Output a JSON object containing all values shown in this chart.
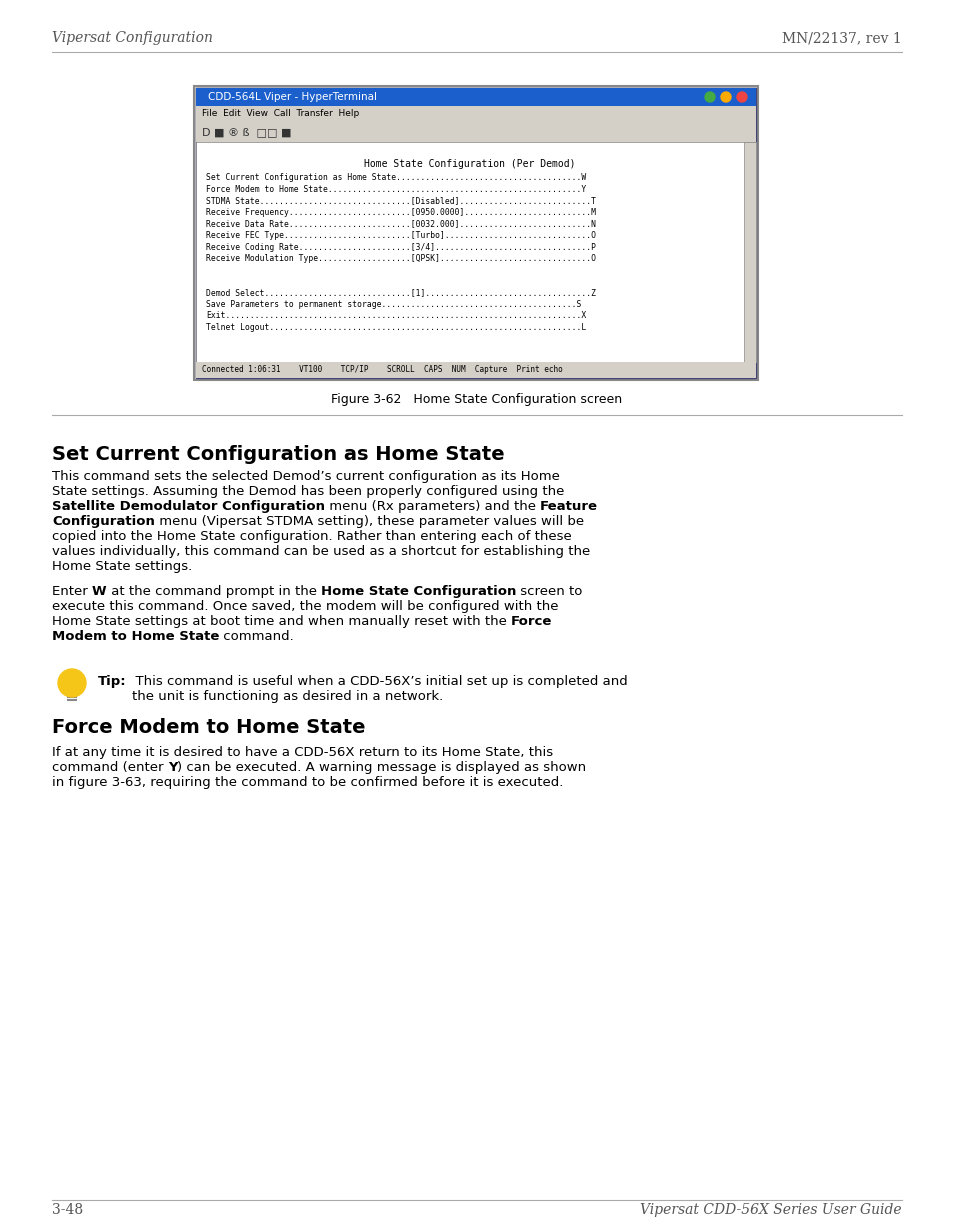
{
  "page_header_left": "Vipersat Configuration",
  "page_header_right": "MN/22137, rev 1",
  "page_footer_left": "3-48",
  "page_footer_right": "Vipersat CDD-56X Series User Guide",
  "figure_caption": "Figure 3-62   Home State Configuration screen",
  "terminal_title": "CDD-564L Viper - HyperTerminal",
  "terminal_menu": "File  Edit  View  Call  Transfer  Help",
  "terminal_content_title": "Home State Configuration (Per Demod)",
  "terminal_lines": [
    "Set Current Configuration as Home State......................................W",
    "Force Modem to Home State....................................................Y",
    "STDMA State...............................[Disabled]...........................T",
    "Receive Frequency.........................[0950.0000]..........................M",
    "Receive Data Rate.........................[0032.000]...........................N",
    "Receive FEC Type..........................[Turbo]..............................O",
    "Receive Coding Rate.......................[3/4]................................P",
    "Receive Modulation Type...................[QPSK]...............................O",
    "",
    "",
    "Demod Select..............................[1]..................................Z",
    "Save Parameters to permanent storage........................................S",
    "Exit.........................................................................X",
    "Telnet Logout................................................................L"
  ],
  "terminal_status": "Connected 1:06:31    VT100    TCP/IP    SCROLL  CAPS  NUM  Capture  Print echo",
  "section1_title": "Set Current Configuration as Home State",
  "section1_body": [
    "This command sets the selected Demod’s current configuration as its Home",
    "State settings. Assuming the Demod has been properly configured using the",
    "**Satellite Demodulator Configuration** menu (Rx parameters) and the **Feature",
    "Configuration** menu (Vipersat STDMA setting), these parameter values will be",
    "copied into the Home State configuration. Rather than entering each of these",
    "values individually, this command can be used as a shortcut for establishing the",
    "Home State settings."
  ],
  "section1_para2": [
    "Enter **W** at the command prompt in the **Home State Configuration** screen to",
    "execute this command. Once saved, the modem will be configured with the",
    "Home State settings at boot time and when manually reset with the **Force",
    "Modem to Home State** command."
  ],
  "tip_text": "Tip:  This command is useful when a CDD-56X’s initial set up is completed and\n        the unit is functioning as desired in a network.",
  "section2_title": "Force Modem to Home State",
  "section2_body": [
    "If at any time it is desired to have a CDD-56X return to its Home State, this",
    "command (enter **Y**) can be executed. A warning message is displayed as shown",
    "in figure 3-63, requiring the command to be confirmed before it is executed."
  ],
  "bg_color": "#ffffff",
  "text_color": "#000000",
  "header_color": "#555555",
  "terminal_bg": "#ffffff",
  "terminal_title_bg": "#1155cc",
  "terminal_title_fg": "#ffffff",
  "terminal_menu_bg": "#d4d0c8",
  "terminal_toolbar_bg": "#d4d0c8",
  "terminal_status_bg": "#d4d0c8",
  "terminal_border": "#003399"
}
